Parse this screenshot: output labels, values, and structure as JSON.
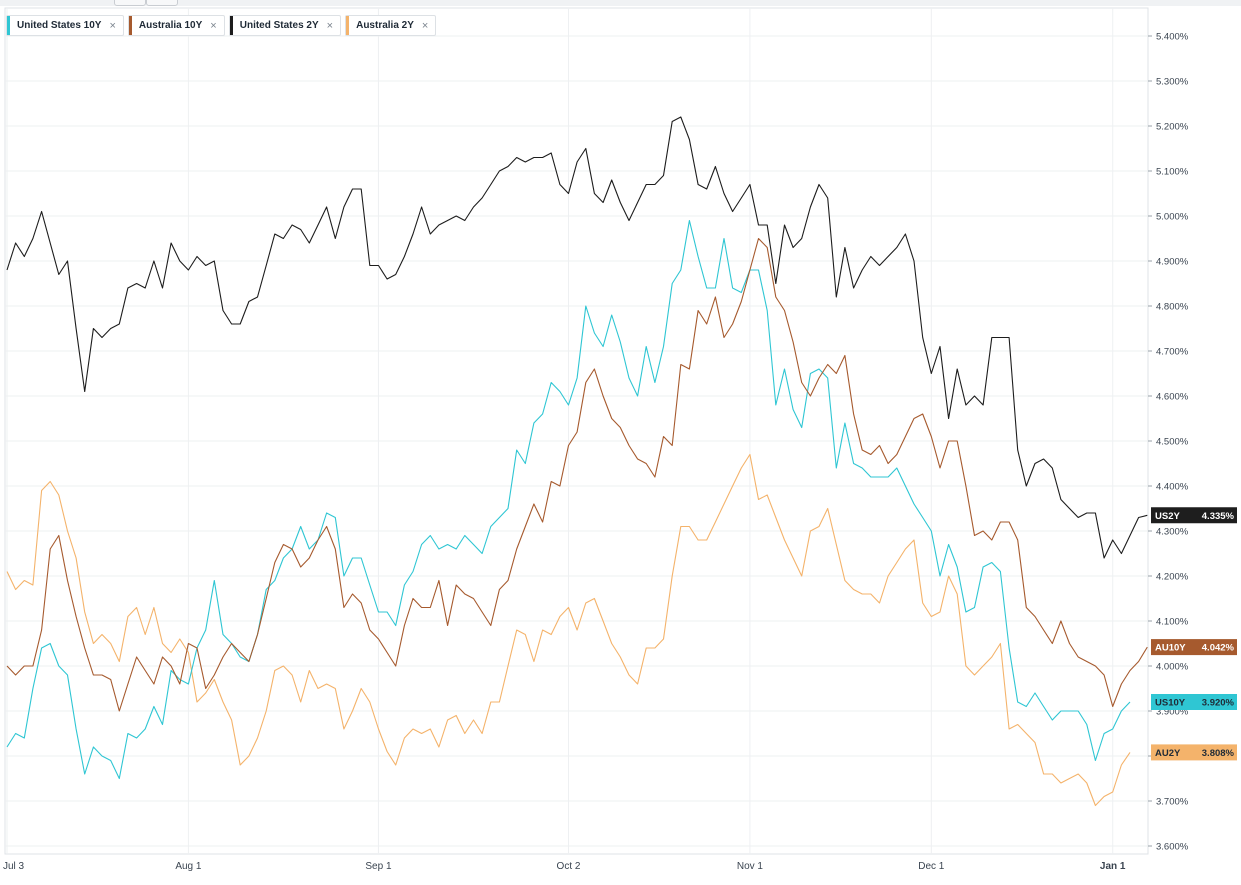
{
  "legend": [
    {
      "label": "United States 10Y",
      "color": "#2fc6d3",
      "close": "×"
    },
    {
      "label": "Australia 10Y",
      "color": "#a65a2e",
      "close": "×"
    },
    {
      "label": "United States 2Y",
      "color": "#1d1d1d",
      "close": "×"
    },
    {
      "label": "Australia 2Y",
      "color": "#f4b36b",
      "close": "×"
    }
  ],
  "badges": [
    {
      "code": "US2Y",
      "value": "4.335%",
      "level": 4.335,
      "bg": "#1e1e1e",
      "fg": "#ffffff"
    },
    {
      "code": "AU10Y",
      "value": "4.042%",
      "level": 4.042,
      "bg": "#a65a2e",
      "fg": "#ffffff"
    },
    {
      "code": "US10Y",
      "value": "3.920%",
      "level": 3.92,
      "bg": "#2fc6d3",
      "fg": "#1f2a36"
    },
    {
      "code": "AU2Y",
      "value": "3.808%",
      "level": 3.808,
      "bg": "#f4b36b",
      "fg": "#1f2a36"
    }
  ],
  "chart_data": {
    "type": "line",
    "title": "",
    "xlabel": "",
    "ylabel": "",
    "ylim": [
      3.595,
      5.47
    ],
    "y_ticks": [
      "3.600%",
      "3.700%",
      "3.800%",
      "3.900%",
      "4.000%",
      "4.100%",
      "4.200%",
      "4.300%",
      "4.400%",
      "4.500%",
      "4.600%",
      "4.700%",
      "4.800%",
      "4.900%",
      "5.000%",
      "5.100%",
      "5.200%",
      "5.300%",
      "5.400%"
    ],
    "y_tick_values": [
      3.6,
      3.7,
      3.8,
      3.9,
      4.0,
      4.1,
      4.2,
      4.3,
      4.4,
      4.5,
      4.6,
      4.7,
      4.8,
      4.9,
      5.0,
      5.1,
      5.2,
      5.3,
      5.4
    ],
    "x_tick_labels": [
      "Jul 3",
      "Aug 1",
      "Sep 1",
      "Oct 2",
      "Nov 1",
      "Dec 1",
      "Jan 1"
    ],
    "x_tick_index": [
      0,
      21,
      43,
      65,
      86,
      107,
      128
    ],
    "x_index_max": 130,
    "grid": true,
    "series": [
      {
        "name": "United States 2Y",
        "color": "#1d1d1d",
        "values": [
          4.88,
          4.94,
          4.91,
          4.95,
          5.01,
          4.94,
          4.87,
          4.9,
          4.75,
          4.61,
          4.75,
          4.73,
          4.75,
          4.76,
          4.84,
          4.85,
          4.84,
          4.9,
          4.84,
          4.94,
          4.9,
          4.88,
          4.91,
          4.89,
          4.9,
          4.79,
          4.76,
          4.76,
          4.81,
          4.82,
          4.89,
          4.96,
          4.95,
          4.98,
          4.97,
          4.94,
          4.98,
          5.02,
          4.95,
          5.02,
          5.06,
          5.06,
          4.89,
          4.89,
          4.86,
          4.87,
          4.91,
          4.96,
          5.02,
          4.96,
          4.98,
          4.99,
          5.0,
          4.99,
          5.02,
          5.04,
          5.07,
          5.1,
          5.11,
          5.13,
          5.12,
          5.13,
          5.13,
          5.14,
          5.07,
          5.05,
          5.12,
          5.15,
          5.05,
          5.03,
          5.08,
          5.03,
          4.99,
          5.03,
          5.07,
          5.07,
          5.09,
          5.21,
          5.22,
          5.17,
          5.07,
          5.06,
          5.11,
          5.05,
          5.01,
          5.04,
          5.07,
          4.98,
          4.98,
          4.85,
          4.98,
          4.93,
          4.95,
          5.02,
          5.07,
          5.04,
          4.82,
          4.93,
          4.84,
          4.88,
          4.91,
          4.89,
          4.91,
          4.93,
          4.96,
          4.9,
          4.73,
          4.65,
          4.71,
          4.55,
          4.66,
          4.58,
          4.6,
          4.58,
          4.73,
          4.73,
          4.73,
          4.48,
          4.4,
          4.45,
          4.46,
          4.44,
          4.37,
          4.35,
          4.33,
          4.34,
          4.34,
          4.24,
          4.28,
          4.25,
          4.29,
          4.33,
          4.335
        ]
      },
      {
        "name": "United States 10Y",
        "color": "#2fc6d3",
        "values": [
          3.82,
          3.85,
          3.84,
          3.95,
          4.04,
          4.05,
          4.0,
          3.98,
          3.86,
          3.76,
          3.82,
          3.8,
          3.79,
          3.75,
          3.85,
          3.84,
          3.86,
          3.91,
          3.87,
          3.99,
          3.97,
          3.96,
          4.04,
          4.08,
          4.19,
          4.07,
          4.05,
          4.02,
          4.01,
          4.07,
          4.17,
          4.19,
          4.24,
          4.26,
          4.31,
          4.26,
          4.28,
          4.34,
          4.33,
          4.2,
          4.24,
          4.24,
          4.18,
          4.12,
          4.12,
          4.09,
          4.18,
          4.21,
          4.27,
          4.29,
          4.26,
          4.27,
          4.26,
          4.29,
          4.27,
          4.25,
          4.31,
          4.33,
          4.35,
          4.48,
          4.45,
          4.54,
          4.56,
          4.63,
          4.61,
          4.58,
          4.64,
          4.8,
          4.74,
          4.71,
          4.78,
          4.72,
          4.64,
          4.6,
          4.71,
          4.63,
          4.71,
          4.85,
          4.88,
          4.99,
          4.91,
          4.84,
          4.84,
          4.95,
          4.84,
          4.83,
          4.88,
          4.88,
          4.79,
          4.58,
          4.66,
          4.57,
          4.53,
          4.65,
          4.66,
          4.64,
          4.44,
          4.54,
          4.45,
          4.44,
          4.42,
          4.42,
          4.42,
          4.44,
          4.4,
          4.36,
          4.33,
          4.3,
          4.2,
          4.27,
          4.22,
          4.12,
          4.13,
          4.22,
          4.23,
          4.21,
          4.04,
          3.92,
          3.91,
          3.94,
          3.91,
          3.88,
          3.9,
          3.9,
          3.9,
          3.87,
          3.79,
          3.85,
          3.86,
          3.9,
          3.92
        ]
      },
      {
        "name": "Australia 10Y",
        "color": "#a65a2e",
        "values": [
          4.0,
          3.98,
          4.0,
          4.0,
          4.08,
          4.26,
          4.29,
          4.19,
          4.11,
          4.04,
          3.98,
          3.98,
          3.97,
          3.9,
          3.96,
          4.02,
          3.99,
          3.96,
          4.02,
          4.0,
          3.96,
          4.05,
          4.04,
          3.95,
          3.98,
          4.02,
          4.05,
          4.03,
          4.01,
          4.07,
          4.15,
          4.23,
          4.27,
          4.26,
          4.22,
          4.24,
          4.28,
          4.31,
          4.26,
          4.13,
          4.16,
          4.14,
          4.08,
          4.06,
          4.03,
          4.0,
          4.09,
          4.15,
          4.13,
          4.13,
          4.19,
          4.09,
          4.18,
          4.16,
          4.15,
          4.12,
          4.09,
          4.17,
          4.19,
          4.26,
          4.31,
          4.36,
          4.32,
          4.41,
          4.4,
          4.49,
          4.52,
          4.63,
          4.66,
          4.6,
          4.55,
          4.53,
          4.49,
          4.46,
          4.45,
          4.42,
          4.51,
          4.49,
          4.67,
          4.66,
          4.79,
          4.76,
          4.82,
          4.73,
          4.76,
          4.81,
          4.88,
          4.95,
          4.93,
          4.82,
          4.79,
          4.72,
          4.63,
          4.6,
          4.64,
          4.67,
          4.65,
          4.69,
          4.56,
          4.48,
          4.47,
          4.49,
          4.45,
          4.47,
          4.51,
          4.55,
          4.56,
          4.51,
          4.44,
          4.5,
          4.5,
          4.4,
          4.29,
          4.3,
          4.28,
          4.32,
          4.32,
          4.28,
          4.13,
          4.11,
          4.08,
          4.05,
          4.1,
          4.05,
          4.02,
          4.01,
          4.0,
          3.98,
          3.91,
          3.96,
          3.99,
          4.01,
          4.042
        ]
      },
      {
        "name": "Australia 2Y",
        "color": "#f4b36b",
        "values": [
          4.21,
          4.17,
          4.19,
          4.18,
          4.39,
          4.41,
          4.38,
          4.3,
          4.24,
          4.12,
          4.05,
          4.07,
          4.05,
          4.01,
          4.11,
          4.13,
          4.07,
          4.13,
          4.05,
          4.03,
          4.06,
          4.03,
          3.92,
          3.94,
          3.97,
          3.92,
          3.88,
          3.78,
          3.8,
          3.84,
          3.9,
          3.99,
          4.0,
          3.98,
          3.92,
          3.99,
          3.95,
          3.96,
          3.95,
          3.86,
          3.9,
          3.95,
          3.92,
          3.86,
          3.81,
          3.78,
          3.84,
          3.86,
          3.85,
          3.86,
          3.82,
          3.88,
          3.89,
          3.85,
          3.88,
          3.85,
          3.92,
          3.92,
          4.0,
          4.08,
          4.07,
          4.01,
          4.08,
          4.07,
          4.11,
          4.13,
          4.08,
          4.14,
          4.15,
          4.1,
          4.05,
          4.02,
          3.98,
          3.96,
          4.04,
          4.04,
          4.06,
          4.2,
          4.31,
          4.31,
          4.28,
          4.28,
          4.32,
          4.36,
          4.4,
          4.44,
          4.47,
          4.37,
          4.38,
          4.33,
          4.28,
          4.24,
          4.2,
          4.3,
          4.31,
          4.35,
          4.27,
          4.19,
          4.17,
          4.16,
          4.16,
          4.14,
          4.2,
          4.23,
          4.26,
          4.28,
          4.14,
          4.11,
          4.12,
          4.2,
          4.16,
          4.0,
          3.98,
          4.0,
          4.02,
          4.05,
          3.86,
          3.87,
          3.85,
          3.83,
          3.76,
          3.76,
          3.74,
          3.75,
          3.76,
          3.74,
          3.69,
          3.71,
          3.72,
          3.78,
          3.808
        ]
      }
    ]
  }
}
